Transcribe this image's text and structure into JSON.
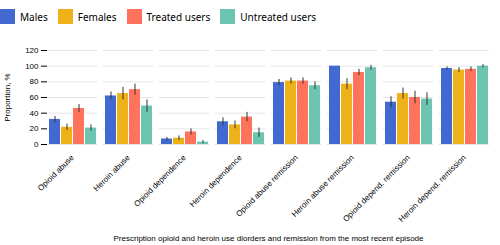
{
  "chart_data": {
    "type": "bar",
    "xlabel": "Prescription opioid and heroin use diorders and remission from the most recent episode",
    "ylabel": "Proportion, %",
    "categories": [
      "Opioid abuse",
      "Heroin abuse",
      "Opioid dependence",
      "Heroin dependence",
      "Opioid abuse remission",
      "Heroin abuse remission",
      "Opioid depend. remission",
      "Heroin depend. remission"
    ],
    "series": [
      {
        "name": "Males",
        "values": [
          32,
          62,
          7,
          29,
          79,
          100,
          54,
          97
        ],
        "errors": [
          4,
          5,
          2,
          5,
          4,
          0,
          7,
          2
        ]
      },
      {
        "name": "Females",
        "values": [
          22,
          65,
          8,
          25,
          81,
          77,
          65,
          95
        ],
        "errors": [
          4,
          8,
          3,
          5,
          4,
          7,
          7,
          3
        ]
      },
      {
        "name": "Treated users",
        "values": [
          46,
          70,
          16,
          35,
          81,
          92,
          60,
          96
        ],
        "errors": [
          5,
          7,
          4,
          6,
          4,
          4,
          8,
          3
        ]
      },
      {
        "name": "Untreated users",
        "values": [
          21,
          49,
          3,
          15,
          75,
          98,
          58,
          100
        ],
        "errors": [
          4,
          8,
          2,
          6,
          5,
          3,
          8,
          2
        ]
      }
    ],
    "ylim": [
      0,
      120
    ],
    "yticks": [
      0,
      20,
      40,
      60,
      80,
      100,
      120
    ],
    "grid": true,
    "legend": "top"
  }
}
